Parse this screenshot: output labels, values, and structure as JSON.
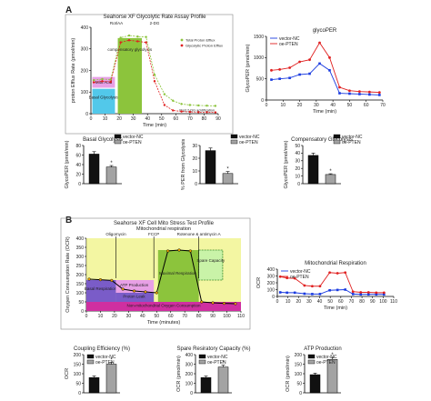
{
  "panel_labels": {
    "a": "A",
    "b": "B"
  },
  "colors": {
    "black": "#111111",
    "grey": "#a3a3a3",
    "blue": "#1a3be0",
    "red": "#e02020",
    "green": "#8cc43c",
    "cyan": "#52c8ea",
    "pink": "#e8a0e6",
    "magenta": "#cf2fa0",
    "purple": "#7a5cc8",
    "yellow": "#eef27a",
    "lightgreen": "#c9f3a8"
  },
  "chart_data": [
    {
      "id": "glyco-profile",
      "type": "line",
      "title": "Seahorse XF Glycolytic Rate Assay Profile",
      "xlabel": "Time (min)",
      "ylabel": "proton Efflux Rate (pmol/min)",
      "xlim": [
        0,
        90
      ],
      "ylim": [
        0,
        400
      ],
      "xticks": [
        "0",
        "10",
        "20",
        "30",
        "40",
        "50",
        "60",
        "70",
        "80",
        "90"
      ],
      "yticks": [
        "0",
        "100",
        "200",
        "300",
        "400"
      ],
      "legend": "top-right",
      "series": [
        {
          "name": "Total Proton Efflux",
          "color": "green",
          "x": [
            2,
            8,
            14,
            21,
            27,
            33,
            39,
            45,
            52,
            58,
            64,
            70,
            76,
            82,
            88
          ],
          "y": [
            155,
            160,
            158,
            352,
            362,
            357,
            355,
            180,
            90,
            60,
            45,
            40,
            38,
            37,
            36
          ]
        },
        {
          "name": "Glycolytic Proton Efflux",
          "color": "red",
          "x": [
            2,
            8,
            14,
            21,
            27,
            33,
            39,
            45,
            52,
            58,
            64,
            70,
            76,
            82,
            88
          ],
          "y": [
            145,
            150,
            147,
            330,
            340,
            335,
            330,
            150,
            40,
            15,
            10,
            8,
            7,
            7,
            6
          ]
        }
      ],
      "annotations": {
        "injection_1": "Rot/AA",
        "injection_2": "2-DG",
        "region_basal": "Basal Glycolysis",
        "region_mito": "Mito Acid",
        "region_comp": "compensatory glycolysis",
        "region_post": "Post 2-DG acidification"
      }
    },
    {
      "id": "glycoper",
      "type": "line",
      "title": "glycoPER",
      "xlabel": "Time (min)",
      "ylabel": "GlycoPER (pmol/min)",
      "xlim": [
        0,
        70
      ],
      "ylim": [
        0,
        1500
      ],
      "xticks": [
        "0",
        "10",
        "20",
        "30",
        "40",
        "50",
        "60",
        "70"
      ],
      "yticks": [
        "0",
        "500",
        "1000",
        "1500"
      ],
      "legend": "top-left",
      "series": [
        {
          "name": "vector-NC",
          "color": "blue",
          "x": [
            3,
            8,
            14,
            20,
            26,
            32,
            38,
            44,
            50,
            56,
            62,
            68
          ],
          "y": [
            480,
            500,
            520,
            600,
            620,
            860,
            700,
            160,
            150,
            140,
            130,
            120
          ]
        },
        {
          "name": "oe-PTEN",
          "color": "red",
          "x": [
            3,
            8,
            14,
            20,
            26,
            32,
            38,
            44,
            50,
            56,
            62,
            68
          ],
          "y": [
            700,
            720,
            760,
            900,
            950,
            1350,
            1000,
            300,
            220,
            200,
            190,
            180
          ]
        }
      ]
    },
    {
      "id": "basal-glyco",
      "type": "bar",
      "title": "Basal Glycolysis",
      "ylabel": "GlycoPER (pmol/min)",
      "ylim": [
        0,
        80
      ],
      "yticks": [
        "0",
        "20",
        "40",
        "60",
        "80"
      ],
      "legend": "top-right",
      "categories": [
        "vector-NC",
        "oe-PTEN"
      ],
      "values": [
        62,
        35
      ],
      "errors": [
        5,
        3
      ],
      "stars": [
        "",
        "*"
      ]
    },
    {
      "id": "per-glyco",
      "type": "bar",
      "title": "",
      "ylabel": "% PER from Glycolysis",
      "ylim": [
        0,
        30
      ],
      "yticks": [
        "0",
        "10",
        "20",
        "30"
      ],
      "legend": "top-right",
      "categories": [
        "vector-NC",
        "oe-PTEN"
      ],
      "values": [
        26,
        8
      ],
      "errors": [
        2,
        1.5
      ],
      "stars": [
        "",
        "*"
      ]
    },
    {
      "id": "comp-glyco",
      "type": "bar",
      "title": "Compensatory Glycolysis",
      "ylabel": "GlycoPER (pmol/min)",
      "ylim": [
        0,
        50
      ],
      "yticks": [
        "0",
        "10",
        "20",
        "30",
        "40",
        "50"
      ],
      "legend": "top-right",
      "categories": [
        "vector-NC",
        "oe-PTEN"
      ],
      "values": [
        37,
        12
      ],
      "errors": [
        3,
        1
      ],
      "stars": [
        "",
        "*"
      ]
    },
    {
      "id": "mito-profile",
      "type": "area",
      "title": "Seahorse XF Cell Mito Stress Test Profile",
      "subtitle": "Mitochondrial respiration",
      "xlabel": "Time (minutes)",
      "ylabel": "Oxygen Consumption Rate (OCR)",
      "xlim": [
        0,
        110
      ],
      "ylim": [
        0,
        400
      ],
      "xticks": [
        "0",
        "10",
        "20",
        "30",
        "40",
        "50",
        "60",
        "70",
        "80",
        "90",
        "100",
        "110"
      ],
      "yticks": [
        "0",
        "50",
        "100",
        "150",
        "200",
        "250",
        "300",
        "350",
        "400"
      ],
      "series": [
        {
          "name": "OCR",
          "color": "black",
          "x": [
            2,
            10,
            18,
            26,
            34,
            42,
            50,
            58,
            66,
            74,
            82,
            90,
            98,
            106
          ],
          "y": [
            175,
            172,
            168,
            120,
            110,
            105,
            100,
            330,
            335,
            330,
            50,
            45,
            42,
            40
          ]
        }
      ],
      "annotations": {
        "oligomycin": "Oligomycin",
        "fccp": "FCCP",
        "rotenone": "Rotenone & antimycin A",
        "basal": "Basal Respiration",
        "atp": "ATP Production",
        "leak": "Proton Leak",
        "maximal": "Maximal Respiration",
        "spare": "Spare Capacity",
        "nonmito": "Non-mitochondrial Oxygen Consumption"
      }
    },
    {
      "id": "mito-resp",
      "type": "line",
      "title": "Mitochondrial Respiration",
      "xlabel": "Time (min)",
      "ylabel": "OCR",
      "xlim": [
        0,
        120
      ],
      "ylim": [
        0,
        400
      ],
      "xticks": [
        "0",
        "10",
        "20",
        "30",
        "40",
        "50",
        "60",
        "70",
        "80",
        "90",
        "100",
        "110"
      ],
      "yticks": [
        "0",
        "100",
        "200",
        "300",
        "400"
      ],
      "legend": "top-right",
      "series": [
        {
          "name": "vector-NC",
          "color": "blue",
          "x": [
            3,
            10,
            18,
            28,
            36,
            44,
            54,
            62,
            70,
            78,
            86,
            94,
            102,
            110
          ],
          "y": [
            60,
            55,
            55,
            40,
            35,
            35,
            90,
            95,
            100,
            35,
            30,
            30,
            30,
            30
          ]
        },
        {
          "name": "oe-PTEN",
          "color": "red",
          "x": [
            3,
            10,
            18,
            28,
            36,
            44,
            54,
            62,
            70,
            78,
            86,
            94,
            102,
            110
          ],
          "y": [
            290,
            270,
            265,
            160,
            150,
            150,
            350,
            340,
            350,
            70,
            60,
            60,
            55,
            55
          ]
        }
      ]
    },
    {
      "id": "coupling",
      "type": "bar",
      "title": "Coupling Efficiency (%)",
      "ylabel": "OCR",
      "ylim": [
        0,
        200
      ],
      "yticks": [
        "0",
        "50",
        "100",
        "150",
        "200"
      ],
      "legend": "top-left",
      "categories": [
        "vector-NC",
        "oe-PTEN"
      ],
      "values": [
        80,
        150
      ],
      "errors": [
        8,
        10
      ],
      "stars": [
        "",
        "*"
      ]
    },
    {
      "id": "spare",
      "type": "bar",
      "title": "Spare Resiratory Capacity (%)",
      "ylabel": "OCR (pmol/min)",
      "ylim": [
        0,
        400
      ],
      "yticks": [
        "0",
        "100",
        "200",
        "300",
        "400"
      ],
      "legend": "top-left",
      "categories": [
        "vector-NC",
        "oe-PTEN"
      ],
      "values": [
        160,
        270
      ],
      "errors": [
        15,
        20
      ],
      "stars": [
        "",
        "*"
      ]
    },
    {
      "id": "atp",
      "type": "bar",
      "title": "ATP Production",
      "ylabel": "OCR (pmol/min)",
      "ylim": [
        0,
        200
      ],
      "yticks": [
        "0",
        "50",
        "100",
        "150",
        "200"
      ],
      "legend": "top-left",
      "categories": [
        "vector-NC",
        "oe-PTEN"
      ],
      "values": [
        95,
        175
      ],
      "errors": [
        8,
        10
      ],
      "stars": [
        "",
        "*"
      ]
    }
  ]
}
